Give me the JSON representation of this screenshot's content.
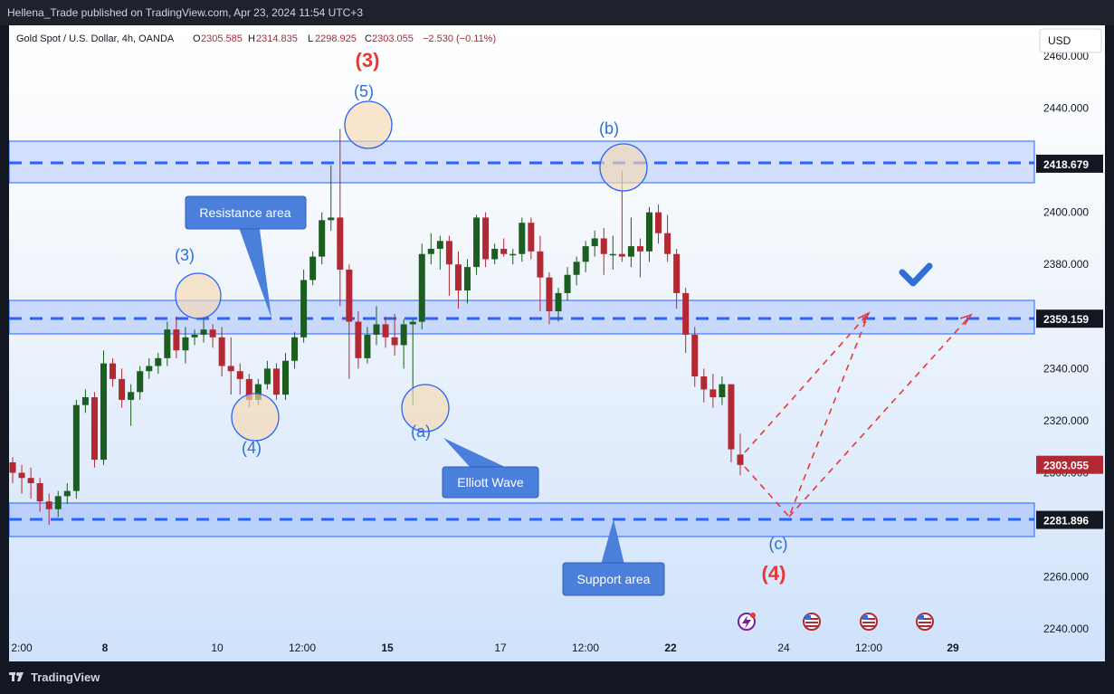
{
  "header": {
    "published": "Hellena_Trade published on TradingView.com, Apr 23, 2024 11:54 UTC+3"
  },
  "symbol": {
    "name": "Gold Spot / U.S. Dollar, 4h, OANDA",
    "o_label": "O",
    "o": "2305.585",
    "h_label": "H",
    "h": "2314.835",
    "l_label": "L",
    "l": "2298.925",
    "c_label": "C",
    "c": "2303.055",
    "change": "−2.530 (−0.11%)"
  },
  "currency_button": "USD",
  "price_axis": {
    "ticks": [
      "2460.000",
      "2440.000",
      "2420.000",
      "2400.000",
      "2380.000",
      "2360.000",
      "2340.000",
      "2320.000",
      "2300.000",
      "2280.000",
      "2260.000",
      "2240.000"
    ],
    "highlights": [
      {
        "value": "2418.679",
        "color": "#131722"
      },
      {
        "value": "2359.159",
        "color": "#131722"
      },
      {
        "value": "2303.055",
        "color": "#b22833"
      },
      {
        "value": "2281.896",
        "color": "#131722"
      }
    ]
  },
  "time_axis": {
    "labels": [
      "2:00",
      "8",
      "10",
      "12:00",
      "15",
      "17",
      "12:00",
      "22",
      "24",
      "12:00",
      "29"
    ]
  },
  "annotations": {
    "wave_3_red_top": "(3)",
    "wave_5": "(5)",
    "wave_b": "(b)",
    "wave_3_small": "(3)",
    "wave_4_small": "(4)",
    "wave_a": "(a)",
    "wave_c": "(c)",
    "wave_4_red": "(4)",
    "callout_resistance": "Resistance area",
    "callout_elliott": "Elliott Wave",
    "callout_support": "Support area"
  },
  "footer": {
    "brand": "TradingView"
  },
  "colors": {
    "up": "#1b5e20",
    "down": "#b22833",
    "zone": "#2962ff",
    "callout_bg": "#4a7fdc",
    "wave_red": "#e53935",
    "wave_blue": "#2f6fd6"
  },
  "icons": [
    "lightning-event-icon",
    "us-flag-event-icon",
    "us-flag-event-icon",
    "us-flag-event-icon",
    "checkmark-icon"
  ]
}
